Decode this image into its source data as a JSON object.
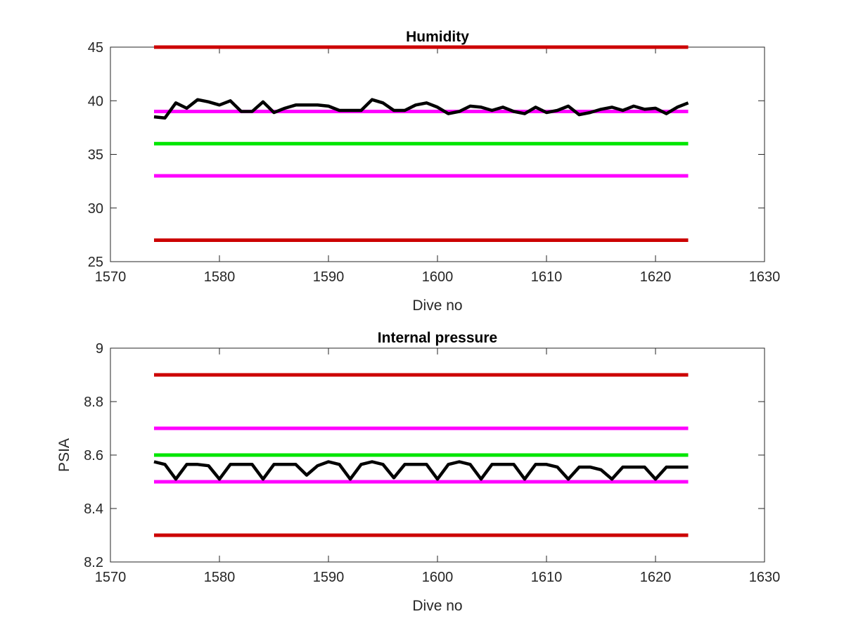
{
  "chart_data": [
    {
      "type": "line",
      "title": "Humidity",
      "xlabel": "Dive no",
      "ylabel": "",
      "xlim": [
        1570,
        1630
      ],
      "ylim": [
        25,
        45
      ],
      "xticks": [
        1570,
        1580,
        1590,
        1600,
        1610,
        1620,
        1630
      ],
      "xtick_labels": [
        "1570",
        "1580",
        "1590",
        "1600",
        "1610",
        "1620",
        "1630"
      ],
      "yticks": [
        25,
        30,
        35,
        40,
        45
      ],
      "ytick_labels": [
        "25",
        "30",
        "35",
        "40",
        "45"
      ],
      "grid": false,
      "series": [
        {
          "color": "#cc0000",
          "x": [
            1574,
            1623
          ],
          "y": [
            45,
            45
          ]
        },
        {
          "color": "#ff00ff",
          "x": [
            1574,
            1623
          ],
          "y": [
            39,
            39
          ]
        },
        {
          "color": "#00e600",
          "x": [
            1574,
            1623
          ],
          "y": [
            36,
            36
          ]
        },
        {
          "color": "#ff00ff",
          "x": [
            1574,
            1623
          ],
          "y": [
            33,
            33
          ]
        },
        {
          "color": "#cc0000",
          "x": [
            1574,
            1623
          ],
          "y": [
            27,
            27
          ]
        },
        {
          "color": "#000000",
          "x": [
            1574,
            1575,
            1576,
            1577,
            1578,
            1579,
            1580,
            1581,
            1582,
            1583,
            1584,
            1585,
            1586,
            1587,
            1588,
            1589,
            1590,
            1591,
            1592,
            1593,
            1594,
            1595,
            1596,
            1597,
            1598,
            1599,
            1600,
            1601,
            1602,
            1603,
            1604,
            1605,
            1606,
            1607,
            1608,
            1609,
            1610,
            1611,
            1612,
            1613,
            1614,
            1615,
            1616,
            1617,
            1618,
            1619,
            1620,
            1621,
            1622,
            1623
          ],
          "y": [
            38.5,
            38.4,
            39.8,
            39.3,
            40.1,
            39.9,
            39.6,
            40.0,
            39.0,
            39.0,
            39.9,
            38.9,
            39.3,
            39.6,
            39.6,
            39.6,
            39.5,
            39.1,
            39.1,
            39.1,
            40.1,
            39.8,
            39.1,
            39.1,
            39.6,
            39.8,
            39.4,
            38.8,
            39.0,
            39.5,
            39.4,
            39.1,
            39.4,
            39.0,
            38.8,
            39.4,
            38.9,
            39.1,
            39.5,
            38.7,
            38.9,
            39.2,
            39.4,
            39.1,
            39.5,
            39.2,
            39.3,
            38.8,
            39.4,
            39.8
          ]
        }
      ]
    },
    {
      "type": "line",
      "title": "Internal pressure",
      "xlabel": "Dive no",
      "ylabel": "PSIA",
      "xlim": [
        1570,
        1630
      ],
      "ylim": [
        8.2,
        9.0
      ],
      "xticks": [
        1570,
        1580,
        1590,
        1600,
        1610,
        1620,
        1630
      ],
      "xtick_labels": [
        "1570",
        "1580",
        "1590",
        "1600",
        "1610",
        "1620",
        "1630"
      ],
      "yticks": [
        8.2,
        8.4,
        8.6,
        8.8,
        9.0
      ],
      "ytick_labels": [
        "8.2",
        "8.4",
        "8.6",
        "8.8",
        "9"
      ],
      "grid": false,
      "series": [
        {
          "color": "#cc0000",
          "x": [
            1574,
            1623
          ],
          "y": [
            8.9,
            8.9
          ]
        },
        {
          "color": "#ff00ff",
          "x": [
            1574,
            1623
          ],
          "y": [
            8.7,
            8.7
          ]
        },
        {
          "color": "#00e600",
          "x": [
            1574,
            1623
          ],
          "y": [
            8.6,
            8.6
          ]
        },
        {
          "color": "#ff00ff",
          "x": [
            1574,
            1623
          ],
          "y": [
            8.5,
            8.5
          ]
        },
        {
          "color": "#cc0000",
          "x": [
            1574,
            1623
          ],
          "y": [
            8.3,
            8.3
          ]
        },
        {
          "color": "#000000",
          "x": [
            1574,
            1575,
            1576,
            1577,
            1578,
            1579,
            1580,
            1581,
            1582,
            1583,
            1584,
            1585,
            1586,
            1587,
            1588,
            1589,
            1590,
            1591,
            1592,
            1593,
            1594,
            1595,
            1596,
            1597,
            1598,
            1599,
            1600,
            1601,
            1602,
            1603,
            1604,
            1605,
            1606,
            1607,
            1608,
            1609,
            1610,
            1611,
            1612,
            1613,
            1614,
            1615,
            1616,
            1617,
            1618,
            1619,
            1620,
            1621,
            1622,
            1623
          ],
          "y": [
            8.575,
            8.565,
            8.51,
            8.565,
            8.565,
            8.56,
            8.51,
            8.565,
            8.565,
            8.565,
            8.51,
            8.565,
            8.565,
            8.565,
            8.525,
            8.56,
            8.575,
            8.565,
            8.51,
            8.565,
            8.575,
            8.565,
            8.515,
            8.565,
            8.565,
            8.565,
            8.51,
            8.565,
            8.575,
            8.565,
            8.51,
            8.565,
            8.565,
            8.565,
            8.51,
            8.565,
            8.565,
            8.555,
            8.51,
            8.555,
            8.555,
            8.545,
            8.51,
            8.555,
            8.555,
            8.555,
            8.51,
            8.555,
            8.555,
            8.555
          ]
        }
      ]
    }
  ]
}
